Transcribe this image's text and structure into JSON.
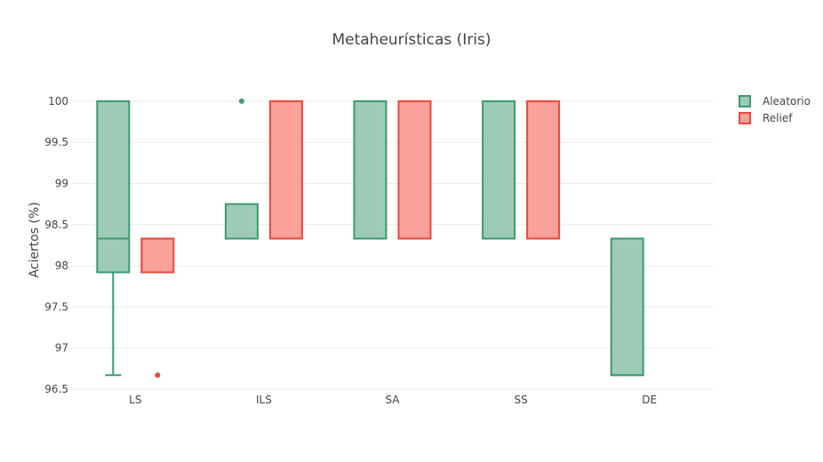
{
  "chart_data": {
    "type": "box",
    "title": "Metaheurísticas (Iris)",
    "xlabel": "",
    "ylabel": "Aciertos (%)",
    "categories": [
      "LS",
      "ILS",
      "SA",
      "SS",
      "DE"
    ],
    "ylim": [
      96.5,
      100.15
    ],
    "yticks": [
      "96.5",
      "97",
      "97.5",
      "98",
      "98.5",
      "99",
      "99.5",
      "100"
    ],
    "grid": true,
    "legend_position": "top-right",
    "series": [
      {
        "name": "Aleatorio",
        "line_color": "#3d9970",
        "fill_color": "#9ecbb6",
        "boxes": [
          {
            "category": "LS",
            "min": 96.67,
            "q1": 97.92,
            "median": 98.33,
            "q3": 100,
            "max": 100,
            "outliers": []
          },
          {
            "category": "ILS",
            "min": 98.33,
            "q1": 98.33,
            "median": 98.33,
            "q3": 98.75,
            "max": 98.75,
            "outliers": [
              100
            ]
          },
          {
            "category": "SA",
            "min": 98.33,
            "q1": 98.33,
            "median": 98.33,
            "q3": 100,
            "max": 100,
            "outliers": []
          },
          {
            "category": "SS",
            "min": 98.33,
            "q1": 98.33,
            "median": 98.33,
            "q3": 100,
            "max": 100,
            "outliers": []
          },
          {
            "category": "DE",
            "min": 96.67,
            "q1": 96.67,
            "median": 96.67,
            "q3": 98.33,
            "max": 98.33,
            "outliers": []
          }
        ]
      },
      {
        "name": "Relief",
        "line_color": "#f0453a",
        "fill_color": "#f9a09a",
        "boxes": [
          {
            "category": "LS",
            "min": 97.92,
            "q1": 97.92,
            "median": 98.33,
            "q3": 98.33,
            "max": 98.33,
            "outliers": [
              96.67
            ]
          },
          {
            "category": "ILS",
            "min": 98.33,
            "q1": 98.33,
            "median": 98.33,
            "q3": 100,
            "max": 100,
            "outliers": []
          },
          {
            "category": "SA",
            "min": 98.33,
            "q1": 98.33,
            "median": 98.33,
            "q3": 100,
            "max": 100,
            "outliers": []
          },
          {
            "category": "SS",
            "min": 98.33,
            "q1": 98.33,
            "median": 98.33,
            "q3": 100,
            "max": 100,
            "outliers": []
          }
        ]
      }
    ]
  }
}
